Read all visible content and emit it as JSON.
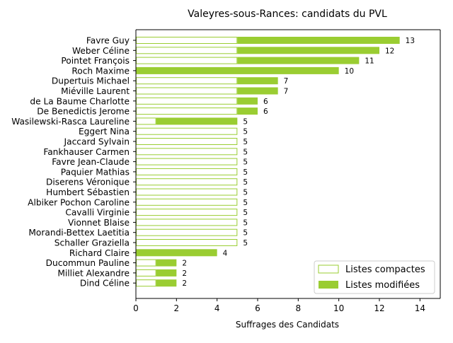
{
  "colors": {
    "accent": "#9acd32",
    "compact_fill": "#ffffff",
    "axis": "#000000",
    "background": "#ffffff"
  },
  "chart_data": {
    "type": "bar",
    "orientation": "horizontal",
    "stacked": true,
    "title": "Valeyres-sous-Rances: candidats du PVL",
    "xlabel": "Suffrages des Candidats",
    "ylabel": "",
    "xlim": [
      0,
      15
    ],
    "xticks": [
      0,
      2,
      4,
      6,
      8,
      10,
      12,
      14
    ],
    "grid": false,
    "legend_position": "lower-right",
    "categories": [
      "Favre Guy",
      "Weber Céline",
      "Pointet François",
      "Roch Maxime",
      "Dupertuis Michael",
      "Miéville Laurent",
      "de La Baume Charlotte",
      "De Benedictis Jerome",
      "Wasilewski-Rasca Laureline",
      "Eggert Nina",
      "Jaccard Sylvain",
      "Fankhauser Carmen",
      "Favre Jean-Claude",
      "Paquier Mathias",
      "Diserens Véronique",
      "Humbert Sébastien",
      "Albiker Pochon Caroline",
      "Cavalli Virginie",
      "Vionnet Blaise",
      "Morandi-Bettex Laetitia",
      "Schaller Graziella",
      "Richard Claire",
      "Ducommun Pauline",
      "Milliet Alexandre",
      "Dind Céline"
    ],
    "series": [
      {
        "name": "Listes compactes",
        "style": "outline",
        "values": [
          5,
          5,
          5,
          0,
          5,
          5,
          5,
          5,
          1,
          5,
          5,
          5,
          5,
          5,
          5,
          5,
          5,
          5,
          5,
          5,
          5,
          0,
          1,
          1,
          1
        ]
      },
      {
        "name": "Listes modifiées",
        "style": "filled",
        "values": [
          8,
          7,
          6,
          10,
          2,
          2,
          1,
          1,
          4,
          0,
          0,
          0,
          0,
          0,
          0,
          0,
          0,
          0,
          0,
          0,
          0,
          4,
          1,
          1,
          1
        ]
      }
    ],
    "totals": [
      13,
      12,
      11,
      10,
      7,
      7,
      6,
      6,
      5,
      5,
      5,
      5,
      5,
      5,
      5,
      5,
      5,
      5,
      5,
      5,
      5,
      4,
      2,
      2,
      2
    ]
  }
}
